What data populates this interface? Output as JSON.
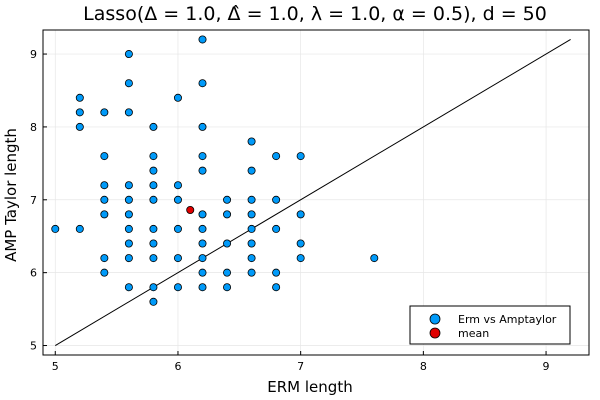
{
  "chart_data": {
    "type": "scatter",
    "title": "Lasso(Δ = 1.0, Δ̂ = 1.0, λ = 1.0, α = 0.5), d = 50",
    "xlabel": "ERM length",
    "ylabel": "AMP Taylor length",
    "xlim": [
      4.9,
      9.35
    ],
    "ylim": [
      4.87,
      9.33
    ],
    "xticks": [
      5,
      6,
      7,
      8,
      9
    ],
    "yticks": [
      5,
      6,
      7,
      8,
      9
    ],
    "grid": true,
    "legend_position": "bottom-right",
    "reference_line": {
      "x": [
        5.0,
        9.2
      ],
      "y": [
        5.0,
        9.2
      ],
      "color": "#000000"
    },
    "series": [
      {
        "name": "Erm vs Amptaylor",
        "color": "#009af9",
        "points": [
          [
            5.0,
            6.6
          ],
          [
            5.2,
            8.4
          ],
          [
            5.2,
            8.2
          ],
          [
            5.2,
            8.0
          ],
          [
            5.2,
            6.6
          ],
          [
            5.4,
            8.2
          ],
          [
            5.4,
            7.6
          ],
          [
            5.4,
            7.2
          ],
          [
            5.4,
            7.0
          ],
          [
            5.4,
            6.8
          ],
          [
            5.4,
            6.2
          ],
          [
            5.4,
            6.0
          ],
          [
            5.6,
            9.0
          ],
          [
            5.6,
            8.6
          ],
          [
            5.6,
            8.2
          ],
          [
            5.6,
            7.2
          ],
          [
            5.6,
            7.0
          ],
          [
            5.6,
            6.8
          ],
          [
            5.6,
            6.6
          ],
          [
            5.6,
            6.4
          ],
          [
            5.6,
            6.2
          ],
          [
            5.6,
            5.8
          ],
          [
            5.8,
            8.0
          ],
          [
            5.8,
            7.6
          ],
          [
            5.8,
            7.4
          ],
          [
            5.8,
            7.2
          ],
          [
            5.8,
            7.0
          ],
          [
            5.8,
            6.6
          ],
          [
            5.8,
            6.4
          ],
          [
            5.8,
            6.2
          ],
          [
            5.8,
            5.8
          ],
          [
            5.8,
            5.6
          ],
          [
            6.0,
            8.4
          ],
          [
            6.0,
            7.2
          ],
          [
            6.0,
            7.0
          ],
          [
            6.0,
            6.6
          ],
          [
            6.0,
            6.2
          ],
          [
            6.0,
            5.8
          ],
          [
            6.2,
            9.2
          ],
          [
            6.2,
            8.6
          ],
          [
            6.2,
            8.0
          ],
          [
            6.2,
            7.6
          ],
          [
            6.2,
            7.4
          ],
          [
            6.2,
            6.8
          ],
          [
            6.2,
            6.6
          ],
          [
            6.2,
            6.4
          ],
          [
            6.2,
            6.2
          ],
          [
            6.2,
            6.0
          ],
          [
            6.2,
            5.8
          ],
          [
            6.4,
            7.0
          ],
          [
            6.4,
            6.8
          ],
          [
            6.4,
            6.4
          ],
          [
            6.4,
            6.0
          ],
          [
            6.4,
            5.8
          ],
          [
            6.6,
            7.8
          ],
          [
            6.6,
            7.4
          ],
          [
            6.6,
            7.0
          ],
          [
            6.6,
            6.8
          ],
          [
            6.6,
            6.6
          ],
          [
            6.6,
            6.4
          ],
          [
            6.6,
            6.2
          ],
          [
            6.6,
            6.0
          ],
          [
            6.8,
            7.6
          ],
          [
            6.8,
            7.0
          ],
          [
            6.8,
            6.6
          ],
          [
            6.8,
            6.0
          ],
          [
            6.8,
            5.8
          ],
          [
            7.0,
            7.6
          ],
          [
            7.0,
            6.8
          ],
          [
            7.0,
            6.4
          ],
          [
            7.0,
            6.2
          ],
          [
            7.6,
            6.2
          ]
        ]
      },
      {
        "name": "mean",
        "color": "#e00000",
        "points": [
          [
            6.1,
            6.86
          ]
        ]
      }
    ]
  }
}
